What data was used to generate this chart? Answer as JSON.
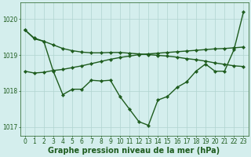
{
  "line1_y": [
    1019.7,
    1019.45,
    1019.38,
    1018.55,
    1017.9,
    1018.05,
    1018.05,
    1018.3,
    1018.28,
    1018.3,
    1017.85,
    1017.5,
    1017.15,
    1017.05,
    1017.75,
    1017.85,
    1018.1,
    1018.25,
    1018.55,
    1018.75,
    1018.55,
    1018.55,
    1019.15,
    1020.2
  ],
  "line2_y": [
    1019.7,
    1019.47,
    1019.38,
    1019.28,
    1019.18,
    1019.12,
    1019.08,
    1019.06,
    1019.06,
    1019.07,
    1019.07,
    1019.05,
    1019.03,
    1019.01,
    1018.99,
    1018.97,
    1018.94,
    1018.9,
    1018.87,
    1018.83,
    1018.78,
    1018.74,
    1018.7,
    1018.68
  ],
  "line3_y": [
    1018.55,
    1018.5,
    1018.52,
    1018.57,
    1018.6,
    1018.65,
    1018.7,
    1018.76,
    1018.82,
    1018.88,
    1018.93,
    1018.97,
    1019.01,
    1019.03,
    1019.05,
    1019.07,
    1019.09,
    1019.11,
    1019.13,
    1019.15,
    1019.17,
    1019.18,
    1019.2,
    1019.22
  ],
  "x": [
    0,
    1,
    2,
    3,
    4,
    5,
    6,
    7,
    8,
    9,
    10,
    11,
    12,
    13,
    14,
    15,
    16,
    17,
    18,
    19,
    20,
    21,
    22,
    23
  ],
  "xlabel": "Graphe pression niveau de la mer (hPa)",
  "xlim_left": -0.5,
  "xlim_right": 23.5,
  "ylim": [
    1016.75,
    1020.45
  ],
  "yticks": [
    1017,
    1018,
    1019,
    1020
  ],
  "xticks": [
    0,
    1,
    2,
    3,
    4,
    5,
    6,
    7,
    8,
    9,
    10,
    11,
    12,
    13,
    14,
    15,
    16,
    17,
    18,
    19,
    20,
    21,
    22,
    23
  ],
  "bg_color": "#d4eeed",
  "grid_color": "#b0d4d0",
  "line_color": "#1e5c1e",
  "xlabel_fontsize": 7.0,
  "tick_fontsize": 5.5,
  "linewidth": 1.0,
  "markersize": 2.2
}
